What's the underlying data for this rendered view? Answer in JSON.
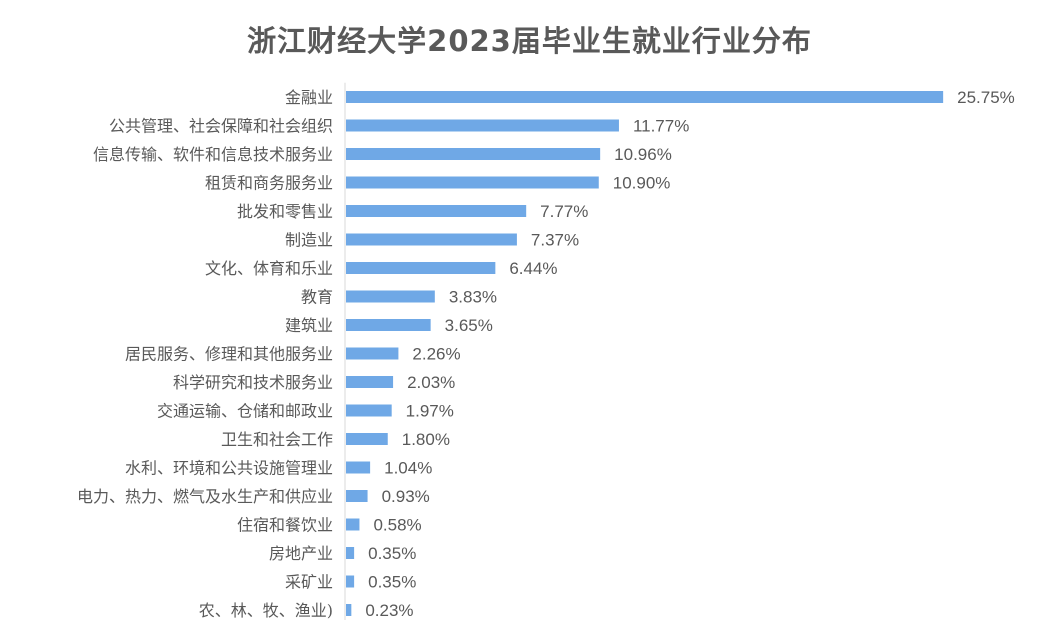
{
  "chart_data": {
    "type": "bar",
    "orientation": "horizontal",
    "title": "浙江财经大学2023届毕业生就业行业分布",
    "categories": [
      "金融业",
      "公共管理、社会保障和社会组织",
      "信息传输、软件和信息技术服务业",
      "租赁和商务服务业",
      "批发和零售业",
      "制造业",
      "文化、体育和乐业",
      "教育",
      "建筑业",
      "居民服务、修理和其他服务业",
      "科学研究和技术服务业",
      "交通运输、仓储和邮政业",
      "卫生和社会工作",
      "水利、环境和公共设施管理业",
      "电力、热力、燃气及水生产和供应业",
      "住宿和餐饮业",
      "房地产业",
      "采矿业",
      "农、林、牧、渔业)"
    ],
    "values": [
      25.75,
      11.77,
      10.96,
      10.9,
      7.77,
      7.37,
      6.44,
      3.83,
      3.65,
      2.26,
      2.03,
      1.97,
      1.8,
      1.04,
      0.93,
      0.58,
      0.35,
      0.35,
      0.23
    ],
    "value_labels": [
      "25.75%",
      "11.77%",
      "10.96%",
      "10.90%",
      "7.77%",
      "7.37%",
      "6.44%",
      "3.83%",
      "3.65%",
      "2.26%",
      "2.03%",
      "1.97%",
      "1.80%",
      "1.04%",
      "0.93%",
      "0.58%",
      "0.35%",
      "0.35%",
      "0.23%"
    ],
    "unit": "%",
    "xlim": [
      0,
      26
    ],
    "grid": false,
    "legend": "none",
    "colors": {
      "bar": "#6fa8e6",
      "axis": "#d9d9d9",
      "text": "#595959"
    }
  }
}
